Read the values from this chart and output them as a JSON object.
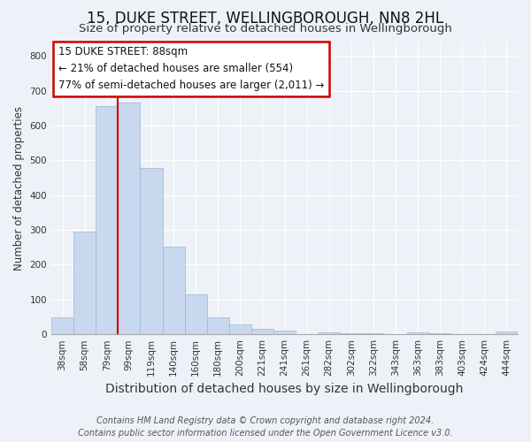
{
  "title": "15, DUKE STREET, WELLINGBOROUGH, NN8 2HL",
  "subtitle": "Size of property relative to detached houses in Wellingborough",
  "xlabel": "Distribution of detached houses by size in Wellingborough",
  "ylabel": "Number of detached properties",
  "bar_labels": [
    "38sqm",
    "58sqm",
    "79sqm",
    "99sqm",
    "119sqm",
    "140sqm",
    "160sqm",
    "180sqm",
    "200sqm",
    "221sqm",
    "241sqm",
    "261sqm",
    "282sqm",
    "302sqm",
    "322sqm",
    "343sqm",
    "363sqm",
    "383sqm",
    "403sqm",
    "424sqm",
    "444sqm"
  ],
  "bar_values": [
    48,
    295,
    655,
    665,
    478,
    253,
    114,
    48,
    29,
    15,
    10,
    0,
    5,
    3,
    3,
    0,
    5,
    2,
    0,
    0,
    7
  ],
  "bar_color": "#c8d8ee",
  "bar_edge_color": "#9ab5d8",
  "marker_color": "#cc0000",
  "annotation_lines": [
    "15 DUKE STREET: 88sqm",
    "← 21% of detached houses are smaller (554)",
    "77% of semi-detached houses are larger (2,011) →"
  ],
  "annotation_box_color": "#ffffff",
  "annotation_box_edge": "#cc0000",
  "ylim": [
    0,
    840
  ],
  "yticks": [
    0,
    100,
    200,
    300,
    400,
    500,
    600,
    700,
    800
  ],
  "footer_line1": "Contains HM Land Registry data © Crown copyright and database right 2024.",
  "footer_line2": "Contains public sector information licensed under the Open Government Licence v3.0.",
  "background_color": "#eef2f8",
  "plot_background": "#eef2f8",
  "grid_color": "#ffffff",
  "title_fontsize": 12,
  "subtitle_fontsize": 9.5,
  "xlabel_fontsize": 10,
  "ylabel_fontsize": 8.5,
  "tick_fontsize": 7.5,
  "footer_fontsize": 7,
  "annotation_fontsize": 8.5
}
